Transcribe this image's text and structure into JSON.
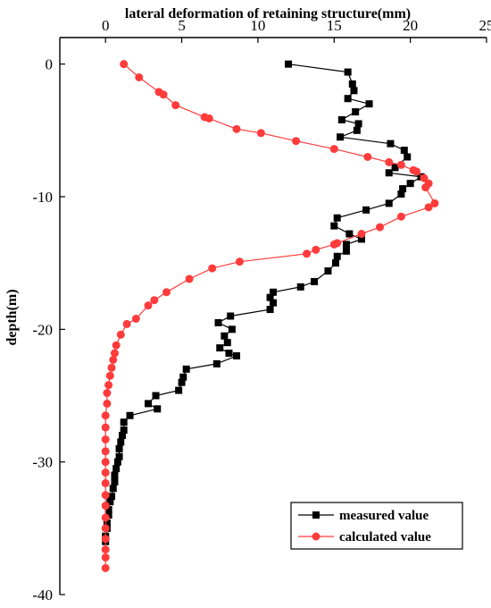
{
  "chart_data": {
    "type": "line",
    "title": "",
    "xlabel": "lateral deformation of retaining structure(mm)",
    "ylabel": "depth(m)",
    "xlim": [
      -3,
      25
    ],
    "ylim": [
      -40,
      2
    ],
    "x_axis_position": "top",
    "xticks": [
      0,
      5,
      10,
      15,
      20,
      25
    ],
    "yticks": [
      0,
      -10,
      -20,
      -30,
      -40
    ],
    "grid": false,
    "legend_position": "bottom-right",
    "series": [
      {
        "name": "measured value",
        "color": "#000000",
        "marker": "square",
        "points": [
          [
            12.0,
            0.0
          ],
          [
            15.9,
            -0.6
          ],
          [
            16.2,
            -1.5
          ],
          [
            16.3,
            -2.0
          ],
          [
            15.9,
            -2.6
          ],
          [
            17.3,
            -3.0
          ],
          [
            16.4,
            -3.6
          ],
          [
            15.5,
            -4.2
          ],
          [
            16.6,
            -4.5
          ],
          [
            16.5,
            -5.0
          ],
          [
            15.4,
            -5.5
          ],
          [
            18.7,
            -6.0
          ],
          [
            19.6,
            -6.5
          ],
          [
            19.8,
            -7.0
          ],
          [
            19.0,
            -7.8
          ],
          [
            18.6,
            -8.2
          ],
          [
            20.7,
            -8.5
          ],
          [
            20.0,
            -9.0
          ],
          [
            19.5,
            -9.4
          ],
          [
            19.4,
            -9.8
          ],
          [
            18.6,
            -10.5
          ],
          [
            17.1,
            -11.0
          ],
          [
            15.2,
            -11.6
          ],
          [
            15.0,
            -12.2
          ],
          [
            16.0,
            -12.8
          ],
          [
            16.8,
            -13.2
          ],
          [
            15.8,
            -13.6
          ],
          [
            15.8,
            -14.1
          ],
          [
            15.2,
            -14.5
          ],
          [
            15.1,
            -15.0
          ],
          [
            14.6,
            -15.6
          ],
          [
            13.7,
            -16.4
          ],
          [
            12.8,
            -16.8
          ],
          [
            11.0,
            -17.2
          ],
          [
            10.8,
            -17.6
          ],
          [
            11.0,
            -18.0
          ],
          [
            10.8,
            -18.5
          ],
          [
            8.2,
            -19.0
          ],
          [
            7.4,
            -19.5
          ],
          [
            8.3,
            -20.0
          ],
          [
            7.8,
            -20.5
          ],
          [
            8.0,
            -21.0
          ],
          [
            7.5,
            -21.4
          ],
          [
            8.1,
            -21.8
          ],
          [
            8.6,
            -22.0
          ],
          [
            7.3,
            -22.6
          ],
          [
            5.3,
            -23.0
          ],
          [
            5.1,
            -23.6
          ],
          [
            5.0,
            -24.0
          ],
          [
            4.8,
            -24.6
          ],
          [
            3.3,
            -25.0
          ],
          [
            2.8,
            -25.6
          ],
          [
            3.4,
            -26.0
          ],
          [
            1.6,
            -26.5
          ],
          [
            1.2,
            -27.0
          ],
          [
            1.2,
            -27.6
          ],
          [
            1.1,
            -28.0
          ],
          [
            1.0,
            -28.5
          ],
          [
            0.9,
            -29.0
          ],
          [
            0.9,
            -29.6
          ],
          [
            0.8,
            -30.0
          ],
          [
            0.7,
            -30.5
          ],
          [
            0.6,
            -31.0
          ],
          [
            0.6,
            -31.5
          ],
          [
            0.5,
            -32.0
          ],
          [
            0.4,
            -32.6
          ],
          [
            0.3,
            -33.0
          ],
          [
            0.2,
            -33.6
          ],
          [
            0.2,
            -34.0
          ],
          [
            0.1,
            -34.6
          ],
          [
            0.1,
            -35.0
          ],
          [
            0.0,
            -35.6
          ],
          [
            0.0,
            -36.0
          ]
        ]
      },
      {
        "name": "calculated value",
        "color": "#ff3b3b",
        "marker": "circle",
        "points": [
          [
            1.2,
            0.0
          ],
          [
            2.2,
            -1.0
          ],
          [
            3.5,
            -2.1
          ],
          [
            3.8,
            -2.3
          ],
          [
            4.6,
            -3.1
          ],
          [
            6.5,
            -4.0
          ],
          [
            6.8,
            -4.1
          ],
          [
            8.6,
            -4.9
          ],
          [
            10.2,
            -5.2
          ],
          [
            12.5,
            -5.8
          ],
          [
            15.0,
            -6.4
          ],
          [
            17.2,
            -7.0
          ],
          [
            18.6,
            -7.4
          ],
          [
            19.4,
            -7.6
          ],
          [
            20.2,
            -8.0
          ],
          [
            20.4,
            -8.1
          ],
          [
            20.9,
            -8.6
          ],
          [
            21.2,
            -9.0
          ],
          [
            21.0,
            -9.3
          ],
          [
            21.6,
            -10.5
          ],
          [
            21.2,
            -10.8
          ],
          [
            19.4,
            -11.5
          ],
          [
            18.0,
            -12.3
          ],
          [
            16.8,
            -12.8
          ],
          [
            15.2,
            -13.5
          ],
          [
            15.0,
            -13.6
          ],
          [
            13.8,
            -14.0
          ],
          [
            13.2,
            -14.3
          ],
          [
            8.8,
            -14.9
          ],
          [
            7.0,
            -15.4
          ],
          [
            5.5,
            -16.2
          ],
          [
            4.0,
            -17.2
          ],
          [
            3.2,
            -17.8
          ],
          [
            2.8,
            -18.2
          ],
          [
            2.0,
            -19.2
          ],
          [
            1.4,
            -19.6
          ],
          [
            1.0,
            -20.4
          ],
          [
            0.7,
            -21.2
          ],
          [
            0.6,
            -21.8
          ],
          [
            0.5,
            -22.3
          ],
          [
            0.4,
            -22.9
          ],
          [
            0.3,
            -23.5
          ],
          [
            0.2,
            -24.2
          ],
          [
            0.1,
            -24.8
          ],
          [
            0.1,
            -25.6
          ],
          [
            0.0,
            -26.5
          ],
          [
            0.0,
            -27.4
          ],
          [
            0.0,
            -28.3
          ],
          [
            0.0,
            -29.2
          ],
          [
            0.0,
            -30.0
          ],
          [
            0.0,
            -30.8
          ],
          [
            0.0,
            -31.6
          ],
          [
            0.0,
            -32.5
          ],
          [
            0.0,
            -33.3
          ],
          [
            0.0,
            -34.2
          ],
          [
            0.0,
            -35.0
          ],
          [
            0.0,
            -35.8
          ],
          [
            0.0,
            -36.6
          ],
          [
            0.0,
            -37.2
          ],
          [
            0.0,
            -38.0
          ]
        ]
      }
    ]
  }
}
